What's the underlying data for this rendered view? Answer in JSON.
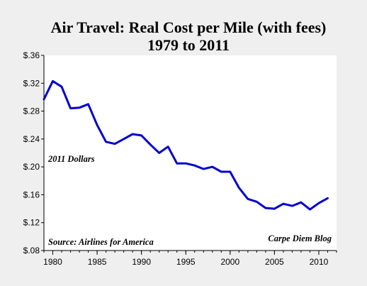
{
  "chart_data": {
    "type": "line",
    "title": "Air Travel: Real Cost per Mile (with fees)",
    "subtitle": "1979 to 2011",
    "x_ticks": [
      "1980",
      "1985",
      "1990",
      "1995",
      "2000",
      "2005",
      "2010"
    ],
    "y_ticks": [
      "$.08",
      "$.12",
      "$.16",
      "$.20",
      "$.24",
      "$.28",
      "$.32",
      "$.36"
    ],
    "xlim": [
      1979,
      2012
    ],
    "ylim": [
      0.08,
      0.36
    ],
    "grid": false,
    "annotations": {
      "units": "2011 Dollars",
      "source": "Source: Airlines for America",
      "credit": "Carpe Diem Blog"
    },
    "series": [
      {
        "color": "#0000cc",
        "x": [
          1979,
          1980,
          1981,
          1982,
          1983,
          1984,
          1985,
          1986,
          1987,
          1988,
          1989,
          1990,
          1991,
          1992,
          1993,
          1994,
          1995,
          1996,
          1997,
          1998,
          1999,
          2000,
          2001,
          2002,
          2003,
          2004,
          2005,
          2006,
          2007,
          2008,
          2009,
          2010,
          2011
        ],
        "y": [
          0.297,
          0.323,
          0.315,
          0.284,
          0.285,
          0.29,
          0.26,
          0.236,
          0.233,
          0.24,
          0.247,
          0.245,
          0.232,
          0.22,
          0.229,
          0.205,
          0.205,
          0.202,
          0.197,
          0.2,
          0.193,
          0.193,
          0.17,
          0.154,
          0.15,
          0.141,
          0.14,
          0.147,
          0.144,
          0.149,
          0.139,
          0.148,
          0.155
        ]
      }
    ]
  }
}
